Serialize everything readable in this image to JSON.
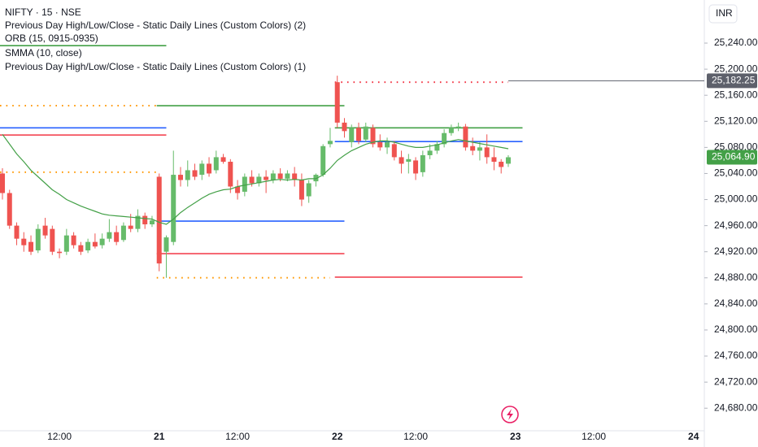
{
  "chart_data": {
    "type": "candlestick",
    "title": "NIFTY · 15 · NSE",
    "legend_lines": [
      "Previous Day High/Low/Close - Static Daily Lines (Custom Colors) (2)",
      "ORB (15, 0915-0935)",
      "SMMA (10, close)",
      "Previous Day High/Low/Close - Static Daily Lines (Custom Colors) (1)"
    ],
    "currency": "INR",
    "categories": [
      null,
      null,
      null,
      null,
      null,
      null,
      null,
      null,
      "12:00",
      null,
      null,
      null,
      null,
      null,
      null,
      null,
      null,
      null,
      null,
      null,
      null,
      null,
      "21",
      null,
      null,
      null,
      null,
      null,
      null,
      null,
      null,
      null,
      null,
      "12:00",
      null,
      null,
      null,
      null,
      null,
      null,
      null,
      null,
      null,
      null,
      null,
      null,
      null,
      "22",
      null,
      null,
      null,
      null,
      null,
      null,
      null,
      null,
      null,
      null,
      "12:00",
      null,
      null,
      null,
      null,
      null,
      null,
      null,
      null,
      null,
      null,
      null,
      null,
      null,
      "23",
      null,
      null,
      null,
      null,
      null,
      null,
      null,
      null,
      null,
      null,
      "12:00",
      null,
      null,
      null,
      null,
      null,
      null,
      null,
      null,
      null,
      null,
      null,
      null,
      null,
      "24"
    ],
    "open": [
      25040,
      25010,
      24960,
      24940,
      24935,
      24922,
      24960,
      24955,
      24920,
      24920,
      24945,
      24930,
      24922,
      24935,
      24930,
      24940,
      24950,
      24938,
      24960,
      24955,
      24975,
      24962,
      25035,
      24920,
      24935,
      25038,
      25030,
      25045,
      25038,
      25055,
      25045,
      25065,
      25058,
      25020,
      25012,
      25035,
      25025,
      25035,
      25030,
      25040,
      25032,
      25040,
      25030,
      25005,
      25028,
      25038,
      25085,
      25180,
      25118,
      25088,
      25110,
      25092,
      25110,
      25088,
      25080,
      25085,
      25065,
      25058,
      25060,
      25042,
      25068,
      25075,
      25085,
      25102,
      25110,
      25112,
      25082,
      25075,
      25080,
      25065,
      25058,
      25055,
      null,
      null,
      null,
      null,
      null,
      null,
      null,
      null,
      null,
      null,
      null,
      null,
      null,
      null,
      null,
      null,
      null,
      null,
      null,
      null,
      null,
      null,
      null,
      null,
      null,
      null
    ],
    "high": [
      25048,
      25015,
      24965,
      24950,
      24945,
      24962,
      24972,
      24960,
      24925,
      24955,
      24950,
      24935,
      24940,
      24948,
      24948,
      24970,
      24960,
      24965,
      24978,
      24985,
      24980,
      24975,
      25040,
      24945,
      25075,
      25050,
      25060,
      25055,
      25060,
      25065,
      25075,
      25070,
      25062,
      25030,
      25040,
      25045,
      25040,
      25045,
      25045,
      25048,
      25045,
      25050,
      25040,
      25030,
      25040,
      25085,
      25110,
      25190,
      25125,
      25115,
      25118,
      25118,
      25115,
      25100,
      25095,
      25090,
      25075,
      25070,
      25065,
      25075,
      25085,
      25090,
      25108,
      25115,
      25118,
      25116,
      25095,
      25088,
      25100,
      25080,
      25062,
      25068,
      null,
      null,
      null,
      null,
      null,
      null,
      null,
      null,
      null,
      null,
      null,
      null,
      null,
      null,
      null,
      null,
      null,
      null,
      null,
      null,
      null,
      null,
      null,
      null,
      null,
      null
    ],
    "low": [
      25000,
      24955,
      24930,
      24920,
      24915,
      24918,
      24940,
      24915,
      24910,
      24915,
      24925,
      24915,
      24918,
      24925,
      24925,
      24935,
      24930,
      24935,
      24950,
      24950,
      24955,
      24958,
      24890,
      24880,
      24930,
      25020,
      25020,
      25030,
      25030,
      25035,
      25040,
      25055,
      25010,
      25000,
      25005,
      25020,
      25020,
      25010,
      25025,
      25028,
      25028,
      25020,
      24990,
      24995,
      25020,
      25035,
      25080,
      25110,
      25095,
      25080,
      25085,
      25088,
      25080,
      25075,
      25070,
      25060,
      25040,
      25040,
      25030,
      25035,
      25062,
      25070,
      25080,
      25098,
      25105,
      25075,
      25068,
      25060,
      25055,
      25045,
      25040,
      25050,
      null,
      null,
      null,
      null,
      null,
      null,
      null,
      null,
      null,
      null,
      null,
      null,
      null,
      null,
      null,
      null,
      null,
      null,
      null,
      null,
      null,
      null,
      null,
      null,
      null,
      null
    ],
    "close": [
      25010,
      24960,
      24940,
      24930,
      24920,
      24955,
      24945,
      24920,
      24918,
      24945,
      24930,
      24920,
      24935,
      24928,
      24940,
      24950,
      24935,
      24960,
      24955,
      24975,
      24962,
      24968,
      24902,
      24942,
      25038,
      25030,
      25045,
      25035,
      25055,
      25040,
      25065,
      25058,
      25020,
      25010,
      25035,
      25025,
      25035,
      25030,
      25040,
      25032,
      25040,
      25030,
      25000,
      25025,
      25038,
      25082,
      25090,
      25118,
      25105,
      25110,
      25090,
      25112,
      25085,
      25080,
      25088,
      25065,
      25055,
      25062,
      25040,
      25068,
      25075,
      25085,
      25102,
      25110,
      25112,
      25080,
      25075,
      25080,
      25065,
      25058,
      25050,
      25064.9,
      null,
      null,
      null,
      null,
      null,
      null,
      null,
      null,
      null,
      null,
      null,
      null,
      null,
      null,
      null,
      null,
      null,
      null,
      null,
      null,
      null,
      null,
      null,
      null,
      null,
      null
    ],
    "up_color": "#66bb6a",
    "down_color": "#ef5350",
    "smma": {
      "color": "#43a047",
      "values": [
        25100,
        25085,
        25070,
        25058,
        25045,
        25035,
        25025,
        25015,
        25008,
        25000,
        24995,
        24990,
        24986,
        24982,
        24978,
        24976,
        24975,
        24974,
        24973,
        24972,
        24971,
        24970,
        24965,
        24962,
        24970,
        24980,
        24988,
        24995,
        25002,
        25008,
        25012,
        25015,
        25016,
        25020,
        25022,
        25024,
        25026,
        25028,
        25030,
        25031,
        25030,
        25031,
        25030,
        25032,
        25032,
        25038,
        25048,
        25060,
        25068,
        25075,
        25080,
        25085,
        25088,
        25090,
        25090,
        25088,
        25085,
        25082,
        25080,
        25080,
        25082,
        25084,
        25087,
        25090,
        25092,
        25090,
        25088,
        25086,
        25084,
        25082,
        25080,
        25078,
        null,
        null,
        null,
        null,
        null,
        null,
        null,
        null,
        null,
        null,
        null,
        null,
        null,
        null,
        null,
        null,
        null,
        null,
        null,
        null,
        null,
        null,
        null,
        null,
        null,
        null
      ]
    },
    "levels": [
      {
        "value": 25236,
        "color": "#43a047",
        "dashed": false,
        "from": 0,
        "to": 23
      },
      {
        "value": 25144,
        "color": "#ff9800",
        "dashed": true,
        "from": 0,
        "to": 22
      },
      {
        "value": 25110,
        "color": "#2962ff",
        "dashed": false,
        "from": 0,
        "to": 23
      },
      {
        "value": 25099,
        "color": "#f23645",
        "dashed": false,
        "from": 0,
        "to": 23
      },
      {
        "value": 25042,
        "color": "#ff9800",
        "dashed": true,
        "from": 0,
        "to": 22
      },
      {
        "value": 25144,
        "color": "#43a047",
        "dashed": false,
        "from": 22,
        "to": 48
      },
      {
        "value": 24967,
        "color": "#2962ff",
        "dashed": false,
        "from": 22,
        "to": 48
      },
      {
        "value": 24917,
        "color": "#f23645",
        "dashed": false,
        "from": 22,
        "to": 48
      },
      {
        "value": 24880,
        "color": "#ff9800",
        "dashed": true,
        "from": 22,
        "to": 46
      },
      {
        "value": 25180,
        "color": "#f23645",
        "dashed": true,
        "from": 47,
        "to": 71
      },
      {
        "value": 25110,
        "color": "#43a047",
        "dashed": false,
        "from": 47,
        "to": 73
      },
      {
        "value": 25089,
        "color": "#2962ff",
        "dashed": false,
        "from": 47,
        "to": 73
      },
      {
        "value": 24881,
        "color": "#f23645",
        "dashed": false,
        "from": 47,
        "to": 73
      }
    ],
    "price_labels": [
      {
        "value": 25182.25,
        "label": "25,182.25",
        "color": "#5d606b",
        "from": 71
      },
      {
        "value": 25064.9,
        "label": "25,064.90",
        "color": "#43a047"
      }
    ],
    "ylim": [
      24645.4,
      25306.1
    ],
    "yticks": [
      {
        "value": 24680,
        "label": "24,680.00"
      },
      {
        "value": 24720,
        "label": "24,720.00"
      },
      {
        "value": 24760,
        "label": "24,760.00"
      },
      {
        "value": 24800,
        "label": "24,800.00"
      },
      {
        "value": 24840,
        "label": "24,840.00"
      },
      {
        "value": 24880,
        "label": "24,880.00"
      },
      {
        "value": 24920,
        "label": "24,920.00"
      },
      {
        "value": 24960,
        "label": "24,960.00"
      },
      {
        "value": 25000,
        "label": "25,000.00"
      },
      {
        "value": 25040,
        "label": "25,040.00"
      },
      {
        "value": 25080,
        "label": "25,080.00"
      },
      {
        "value": 25120,
        "label": "25,120.00"
      },
      {
        "value": 25160,
        "label": "25,160.00"
      },
      {
        "value": 25200,
        "label": "25,200.00"
      },
      {
        "value": 25240,
        "label": "25,240.00"
      }
    ]
  }
}
